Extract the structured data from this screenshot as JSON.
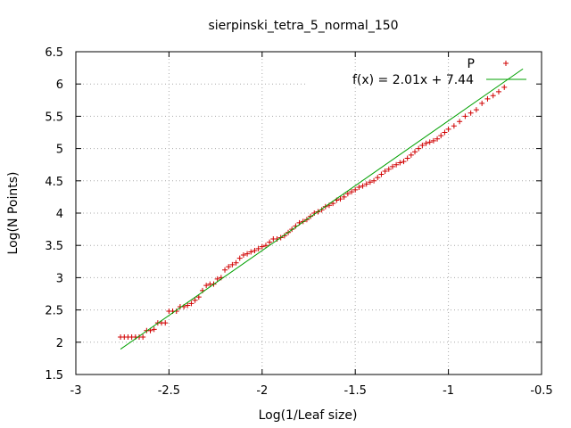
{
  "chart_data": {
    "type": "scatter",
    "title": "sierpinski_tetra_5_normal_150",
    "xlabel": "Log(1/Leaf size)",
    "ylabel": "Log(N Points)",
    "xlim": [
      -3,
      -0.5
    ],
    "ylim": [
      1.5,
      6.5
    ],
    "xticks": [
      "-3",
      "-2.5",
      "-2",
      "-1.5",
      "-1",
      "-0.5"
    ],
    "yticks": [
      "1.5",
      "2",
      "2.5",
      "3",
      "3.5",
      "4",
      "4.5",
      "5",
      "5.5",
      "6",
      "6.5"
    ],
    "grid": true,
    "legend_position": "top-right",
    "series": [
      {
        "name": "P",
        "kind": "points",
        "marker": "+",
        "color": "#d00000",
        "x": [
          -2.76,
          -2.74,
          -2.72,
          -2.7,
          -2.68,
          -2.66,
          -2.64,
          -2.62,
          -2.6,
          -2.58,
          -2.56,
          -2.54,
          -2.52,
          -2.5,
          -2.48,
          -2.46,
          -2.44,
          -2.42,
          -2.4,
          -2.38,
          -2.36,
          -2.34,
          -2.32,
          -2.3,
          -2.28,
          -2.26,
          -2.24,
          -2.22,
          -2.2,
          -2.18,
          -2.16,
          -2.14,
          -2.12,
          -2.1,
          -2.08,
          -2.06,
          -2.04,
          -2.02,
          -2.0,
          -1.98,
          -1.96,
          -1.94,
          -1.92,
          -1.9,
          -1.88,
          -1.86,
          -1.84,
          -1.82,
          -1.8,
          -1.78,
          -1.76,
          -1.74,
          -1.72,
          -1.7,
          -1.68,
          -1.66,
          -1.64,
          -1.62,
          -1.6,
          -1.58,
          -1.56,
          -1.54,
          -1.52,
          -1.5,
          -1.48,
          -1.46,
          -1.44,
          -1.42,
          -1.4,
          -1.38,
          -1.36,
          -1.34,
          -1.32,
          -1.3,
          -1.28,
          -1.26,
          -1.24,
          -1.22,
          -1.2,
          -1.18,
          -1.16,
          -1.14,
          -1.12,
          -1.1,
          -1.08,
          -1.06,
          -1.04,
          -1.02,
          -1.0,
          -0.97,
          -0.94,
          -0.91,
          -0.88,
          -0.85,
          -0.82,
          -0.79,
          -0.76,
          -0.73,
          -0.7
        ],
        "y": [
          2.08,
          2.08,
          2.08,
          2.08,
          2.08,
          2.08,
          2.08,
          2.18,
          2.18,
          2.2,
          2.3,
          2.3,
          2.3,
          2.48,
          2.48,
          2.48,
          2.55,
          2.55,
          2.57,
          2.6,
          2.65,
          2.7,
          2.8,
          2.88,
          2.9,
          2.9,
          2.98,
          3.0,
          3.12,
          3.17,
          3.2,
          3.23,
          3.3,
          3.35,
          3.37,
          3.4,
          3.42,
          3.45,
          3.48,
          3.5,
          3.55,
          3.6,
          3.6,
          3.62,
          3.65,
          3.7,
          3.75,
          3.8,
          3.85,
          3.87,
          3.9,
          3.95,
          4.0,
          4.02,
          4.05,
          4.1,
          4.12,
          4.15,
          4.2,
          4.22,
          4.25,
          4.3,
          4.33,
          4.36,
          4.4,
          4.42,
          4.45,
          4.48,
          4.5,
          4.55,
          4.6,
          4.65,
          4.68,
          4.72,
          4.75,
          4.78,
          4.8,
          4.85,
          4.9,
          4.95,
          5.0,
          5.05,
          5.08,
          5.1,
          5.12,
          5.15,
          5.2,
          5.25,
          5.3,
          5.35,
          5.42,
          5.5,
          5.55,
          5.6,
          5.7,
          5.77,
          5.82,
          5.88,
          5.95
        ]
      },
      {
        "name": "f(x) = 2.01x + 7.44",
        "kind": "line",
        "color": "#00a000",
        "slope": 2.01,
        "intercept": 7.44,
        "x_range": [
          -2.76,
          -0.6
        ]
      }
    ]
  }
}
